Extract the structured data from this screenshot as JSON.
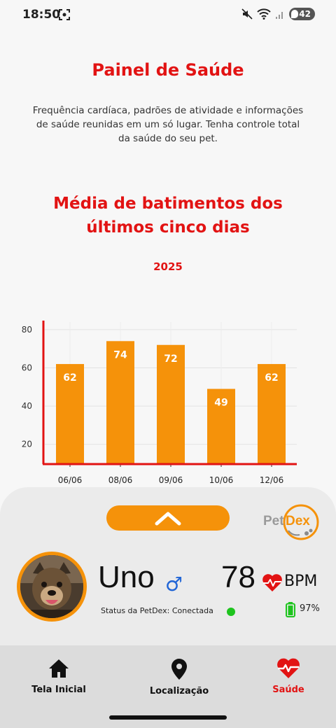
{
  "status_bar": {
    "time": "18:50",
    "battery": "42",
    "icons": [
      "screenshot-icon",
      "mute-icon",
      "wifi-icon",
      "signal-icon"
    ]
  },
  "header": {
    "title": "Painel de Saúde",
    "description": "Frequência cardíaca, padrões de atividade e informações de saúde reunidas em um só lugar. Tenha controle total da saúde do seu pet."
  },
  "chart_header": {
    "title": "Média de batimentos dos últimos cinco dias",
    "year": "2025"
  },
  "chart_data": {
    "type": "bar",
    "categories": [
      "06/06",
      "08/06",
      "09/06",
      "10/06",
      "12/06"
    ],
    "values": [
      62,
      74,
      72,
      49,
      62
    ],
    "ylim": [
      10,
      84
    ],
    "yticks": [
      20,
      40,
      60,
      80
    ],
    "grid": true,
    "data_labels": true,
    "bar_color": "#f5920a",
    "axis_color": "#e21313"
  },
  "pet": {
    "name": "Uno",
    "sex_symbol": "♂",
    "bpm_value": "78",
    "bpm_unit": "BPM",
    "status_label": "Status da PetDex: Conectada",
    "battery_percent": "97%"
  },
  "brand": {
    "logo_text": "PetDex",
    "accent": "#f5920a",
    "red": "#e21313"
  },
  "nav": {
    "items": [
      {
        "label": "Tela Inicial",
        "icon": "home-icon"
      },
      {
        "label": "Localização",
        "icon": "location-pin-icon"
      },
      {
        "label": "Saúde",
        "icon": "heart-pulse-icon"
      }
    ],
    "active": "Saúde"
  }
}
